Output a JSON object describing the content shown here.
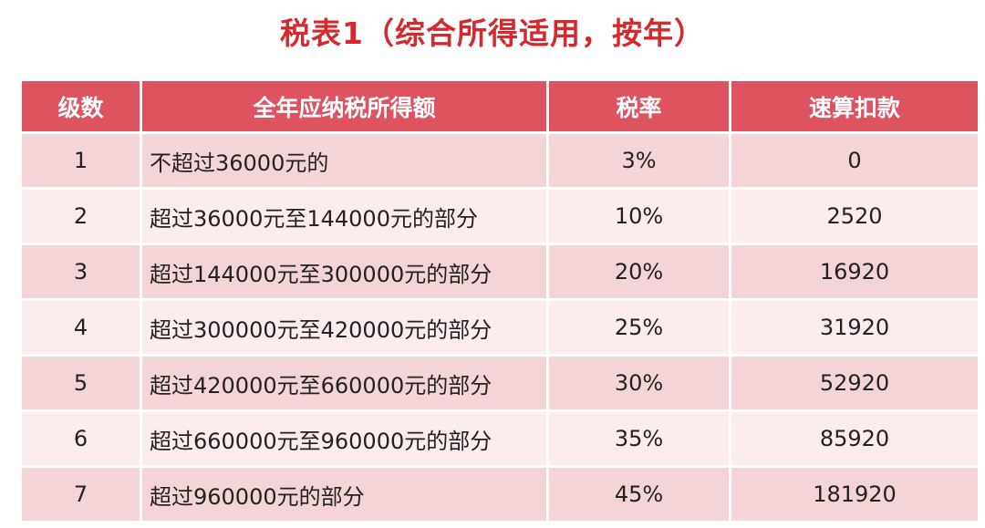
{
  "title": "税表1（综合所得适用，按年）",
  "table": {
    "headers": [
      "级数",
      "全年应纳税所得额",
      "税率",
      "速算扣款"
    ],
    "rows": [
      {
        "level": "1",
        "range": "不超过36000元的",
        "rate": "3%",
        "deduction": "0"
      },
      {
        "level": "2",
        "range": "超过36000元至144000元的部分",
        "rate": "10%",
        "deduction": "2520"
      },
      {
        "level": "3",
        "range": "超过144000元至300000元的部分",
        "rate": "20%",
        "deduction": "16920"
      },
      {
        "level": "4",
        "range": "超过300000元至420000元的部分",
        "rate": "25%",
        "deduction": "31920"
      },
      {
        "level": "5",
        "range": "超过420000元至660000元的部分",
        "rate": "30%",
        "deduction": "52920"
      },
      {
        "level": "6",
        "range": "超过660000元至960000元的部分",
        "rate": "35%",
        "deduction": "85920"
      },
      {
        "level": "7",
        "range": "超过960000元的部分",
        "rate": "45%",
        "deduction": "181920"
      }
    ]
  },
  "colors": {
    "title": "#d42a2f",
    "header_bg": "#de5360",
    "row_dark": "#f3d5d8",
    "row_light": "#fbecee"
  }
}
